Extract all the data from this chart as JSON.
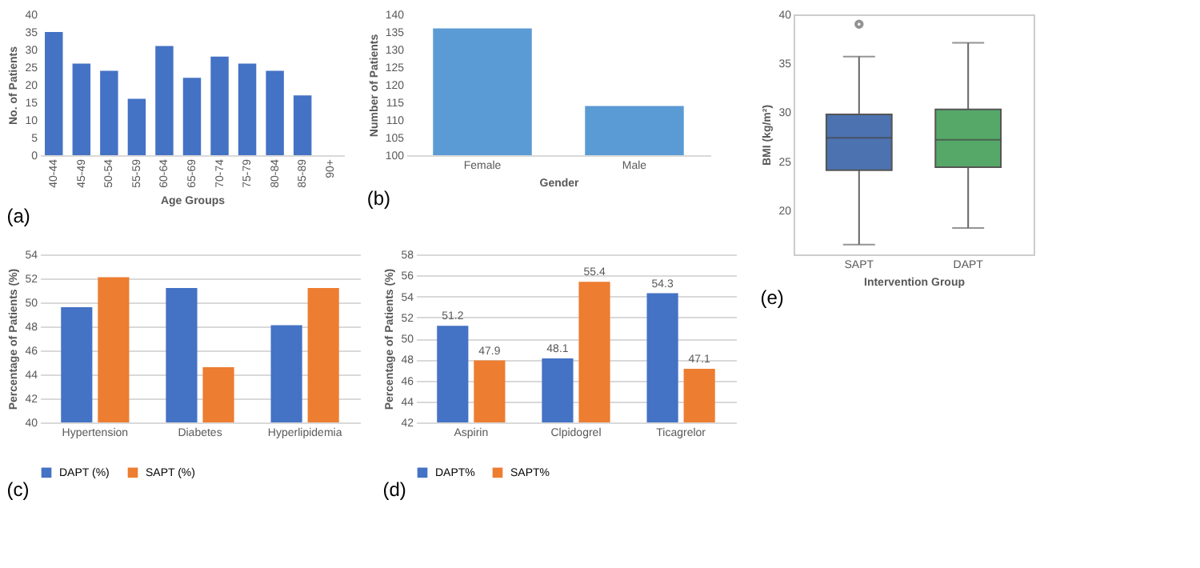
{
  "chart_data": [
    {
      "type": "bar",
      "categories": [
        "40-44",
        "45-49",
        "50-54",
        "55-59",
        "60-64",
        "65-69",
        "70-74",
        "75-79",
        "80-84",
        "85-89",
        "90+"
      ],
      "values": [
        35,
        26,
        24,
        16,
        31,
        22,
        28,
        26,
        24,
        17,
        0
      ],
      "color": "#4472c4",
      "xlabel": "Age Groups",
      "ylabel": "No. of Patients",
      "ylim": [
        0,
        40
      ],
      "yticks": [
        0,
        5,
        10,
        15,
        20,
        25,
        30,
        35,
        40
      ],
      "grid": false,
      "annotations": [
        "(a)"
      ]
    },
    {
      "type": "bar",
      "categories": [
        "Female",
        "Male"
      ],
      "values": [
        136,
        114
      ],
      "color": "#5b9bd5",
      "xlabel": "Gender",
      "ylabel": "Number of Patients",
      "ylim": [
        100,
        140
      ],
      "yticks": [
        100,
        105,
        110,
        115,
        120,
        125,
        130,
        135,
        140
      ],
      "grid": false,
      "annotations": [
        "(b)"
      ]
    },
    {
      "type": "bar",
      "categories": [
        "Hypertension",
        "Diabetes",
        "Hyperlipidemia"
      ],
      "series": [
        {
          "name": "DAPT (%)",
          "color": "#4472c4",
          "values": [
            49.6,
            51.2,
            48.1
          ]
        },
        {
          "name": "SAPT (%)",
          "color": "#ed7d31",
          "values": [
            52.1,
            44.6,
            51.2
          ]
        }
      ],
      "ylabel": "Percentage of Patients (%)",
      "ylim": [
        40,
        54
      ],
      "yticks": [
        40,
        42,
        44,
        46,
        48,
        50,
        52,
        54
      ],
      "grid": "y",
      "legend": "bottom",
      "annotations": [
        "(c)"
      ]
    },
    {
      "type": "bar",
      "categories": [
        "Aspirin",
        "Clpidogrel",
        "Ticagrelor"
      ],
      "series": [
        {
          "name": "DAPT%",
          "color": "#4472c4",
          "values": [
            51.2,
            48.1,
            54.3
          ]
        },
        {
          "name": "SAPT%",
          "color": "#ed7d31",
          "values": [
            47.9,
            55.4,
            47.1
          ]
        }
      ],
      "ylabel": "Percentage of Patients (%)",
      "ylim": [
        42,
        58
      ],
      "yticks": [
        42,
        44,
        46,
        48,
        50,
        52,
        54,
        56,
        58
      ],
      "grid": "y",
      "legend": "bottom",
      "data_labels": true,
      "annotations": [
        "(d)"
      ]
    },
    {
      "type": "box",
      "categories": [
        "SAPT",
        "DAPT"
      ],
      "colors": [
        "#4c72b0",
        "#55a868"
      ],
      "boxes": [
        {
          "low": 16.5,
          "q1": 24.1,
          "median": 27.4,
          "q3": 29.8,
          "high": 35.7,
          "outliers": [
            39
          ]
        },
        {
          "low": 18.2,
          "q1": 24.4,
          "median": 27.2,
          "q3": 30.3,
          "high": 37.1
        }
      ],
      "xlabel": "Intervention Group",
      "ylabel": "BMI (kg/m²)",
      "ylim": [
        15.5,
        40
      ],
      "yticks": [
        20,
        25,
        30,
        35,
        40
      ],
      "grid": false,
      "annotations": [
        "(e)"
      ]
    }
  ]
}
